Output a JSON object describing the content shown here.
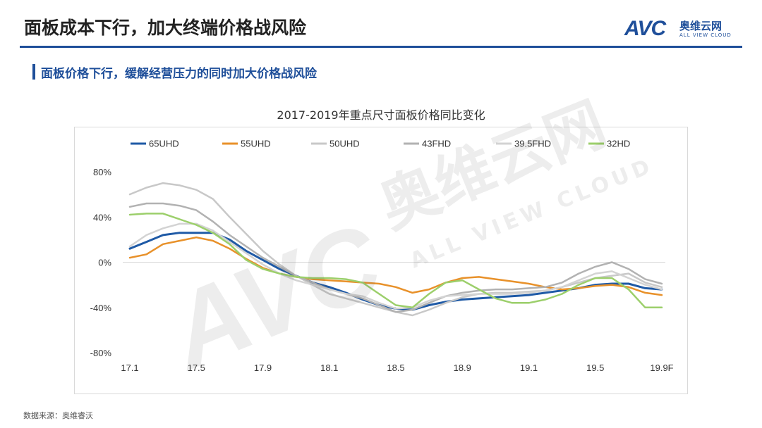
{
  "page": {
    "title": "面板成本下行，加大终端价格战风险",
    "subtitle": "面板价格下行，缓解经营压力的同时加大价格战风险",
    "source": "数据来源：奥维睿沃"
  },
  "logo": {
    "mark": "AVC",
    "cn": "奥维云网",
    "en": "ALL VIEW CLOUD"
  },
  "watermark": {
    "cn": "奥维云网",
    "en": "ALL VIEW CLOUD",
    "mark": "AVC"
  },
  "chart_data": {
    "type": "line",
    "title": "2017-2019年重点尺寸面板价格同比变化",
    "xlabel": "",
    "ylabel": "",
    "ylim": [
      -80,
      80
    ],
    "yticks": [
      80,
      40,
      0,
      -40,
      -80
    ],
    "ytick_labels": [
      "80%",
      "40%",
      "0%",
      "-40%",
      "-80%"
    ],
    "xticks": [
      {
        "index": 0,
        "label": "17.1"
      },
      {
        "index": 4,
        "label": "17.5"
      },
      {
        "index": 8,
        "label": "17.9"
      },
      {
        "index": 12,
        "label": "18.1"
      },
      {
        "index": 16,
        "label": "18.5"
      },
      {
        "index": 20,
        "label": "18.9"
      },
      {
        "index": 24,
        "label": "19.1"
      },
      {
        "index": 28,
        "label": "19.5"
      },
      {
        "index": 32,
        "label": "19.9F"
      }
    ],
    "n_points": 33,
    "series": [
      {
        "name": "65UHD",
        "color": "#1f5aa6",
        "width": 3,
        "values": [
          12,
          18,
          24,
          26,
          26,
          26,
          20,
          10,
          2,
          -6,
          -12,
          -18,
          -22,
          -27,
          -33,
          -38,
          -41,
          -42,
          -38,
          -35,
          -33,
          -32,
          -31,
          -30,
          -29,
          -27,
          -25,
          -23,
          -20,
          -19,
          -19,
          -23,
          -24
        ]
      },
      {
        "name": "55UHD",
        "color": "#e8912a",
        "width": 2.5,
        "values": [
          4,
          7,
          16,
          19,
          22,
          19,
          12,
          3,
          -5,
          -10,
          -13,
          -15,
          -16,
          -17,
          -18,
          -19,
          -22,
          -27,
          -24,
          -18,
          -14,
          -13,
          -15,
          -17,
          -19,
          -22,
          -24,
          -23,
          -21,
          -20,
          -22,
          -27,
          -29
        ]
      },
      {
        "name": "50UHD",
        "color": "#c8c8c8",
        "width": 2.5,
        "values": [
          60,
          66,
          70,
          68,
          64,
          56,
          40,
          25,
          10,
          -2,
          -12,
          -20,
          -28,
          -32,
          -36,
          -40,
          -44,
          -47,
          -42,
          -36,
          -31,
          -28,
          -27,
          -27,
          -26,
          -25,
          -22,
          -18,
          -14,
          -12,
          -10,
          -18,
          -22
        ]
      },
      {
        "name": "43FHD",
        "color": "#b2b2b2",
        "width": 2.5,
        "values": [
          49,
          52,
          52,
          50,
          46,
          36,
          24,
          14,
          4,
          -4,
          -12,
          -18,
          -24,
          -28,
          -32,
          -38,
          -44,
          -42,
          -36,
          -30,
          -27,
          -25,
          -24,
          -24,
          -23,
          -22,
          -18,
          -10,
          -4,
          0,
          -6,
          -15,
          -19
        ]
      },
      {
        "name": "39.5FHD",
        "color": "#d3d3d3",
        "width": 2.5,
        "values": [
          14,
          24,
          30,
          34,
          34,
          28,
          18,
          8,
          -2,
          -10,
          -16,
          -20,
          -24,
          -28,
          -30,
          -36,
          -41,
          -40,
          -34,
          -30,
          -29,
          -28,
          -28,
          -28,
          -27,
          -25,
          -22,
          -16,
          -10,
          -8,
          -14,
          -20,
          -24
        ]
      },
      {
        "name": "32HD",
        "color": "#9ccf6b",
        "width": 2.5,
        "values": [
          42,
          43,
          43,
          38,
          33,
          26,
          16,
          2,
          -6,
          -10,
          -13,
          -14,
          -14,
          -15,
          -18,
          -28,
          -38,
          -40,
          -28,
          -18,
          -16,
          -24,
          -32,
          -36,
          -36,
          -33,
          -28,
          -20,
          -14,
          -14,
          -24,
          -40,
          -40
        ]
      }
    ],
    "legend": "top",
    "grid": false
  }
}
